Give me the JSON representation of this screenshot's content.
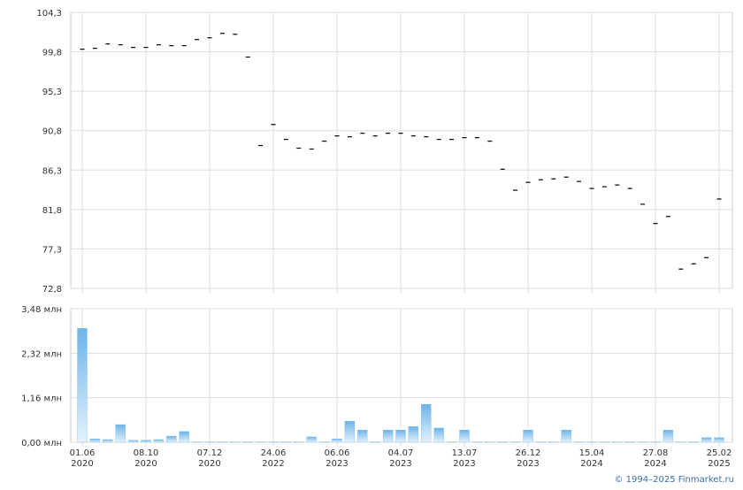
{
  "chart_data": [
    {
      "type": "candle",
      "series": [
        {
          "color": "#000000",
          "values": [
            100.1,
            100.2,
            100.7,
            100.6,
            100.3,
            100.3,
            100.6,
            100.5,
            100.5,
            101.2,
            101.4,
            101.9,
            101.8,
            99.2,
            89.1,
            91.5,
            89.8,
            88.8,
            88.7,
            89.6,
            90.2,
            90.1,
            90.5,
            90.2,
            90.5,
            90.5,
            90.2,
            90.1,
            89.8,
            89.8,
            90.0,
            90.0,
            89.6,
            86.4,
            84.0,
            84.9,
            85.2,
            85.3,
            85.5,
            85.0,
            84.2,
            84.4,
            84.6,
            84.2,
            82.4,
            80.2,
            81.0,
            75.0,
            75.6,
            76.3,
            83.0
          ]
        }
      ],
      "ylim": [
        72.8,
        104.3
      ],
      "yticks": [
        {
          "value": 72.8,
          "label": "72,8"
        },
        {
          "value": 77.3,
          "label": "77,3"
        },
        {
          "value": 81.8,
          "label": "81,8"
        },
        {
          "value": 86.3,
          "label": "86,3"
        },
        {
          "value": 90.8,
          "label": "90,8"
        },
        {
          "value": 95.3,
          "label": "95,3"
        },
        {
          "value": 99.8,
          "label": "99,8"
        },
        {
          "value": 104.3,
          "label": "104,3"
        }
      ],
      "grid": true
    },
    {
      "type": "bar",
      "color": "#6cb4e8",
      "categories": [
        "01.06 2020",
        null,
        null,
        null,
        null,
        "08.10 2020",
        null,
        null,
        null,
        null,
        "07.12 2020",
        null,
        null,
        null,
        null,
        "24.06 2022",
        null,
        null,
        null,
        null,
        "06.06 2023",
        null,
        null,
        null,
        null,
        "04.07 2023",
        null,
        null,
        null,
        null,
        "13.07 2023",
        null,
        null,
        null,
        null,
        "26.12 2023",
        null,
        null,
        null,
        null,
        "15.04 2024",
        null,
        null,
        null,
        null,
        "27.08 2024",
        null,
        null,
        null,
        null,
        "25.02 2025"
      ],
      "values": [
        2.97,
        0.09,
        0.07,
        0.46,
        0.05,
        0.05,
        0.07,
        0.16,
        0.28,
        0.01,
        0.01,
        0.01,
        0.01,
        0.01,
        0.01,
        0.01,
        0.01,
        0.01,
        0.14,
        0.01,
        0.09,
        0.55,
        0.32,
        0.01,
        0.32,
        0.32,
        0.41,
        0.99,
        0.37,
        0.01,
        0.32,
        0.01,
        0.01,
        0.01,
        0.01,
        0.32,
        0.01,
        0.01,
        0.32,
        0.01,
        0.01,
        0.01,
        0.01,
        0.01,
        0.01,
        0.01,
        0.32,
        0.01,
        0.01,
        0.12,
        0.12
      ],
      "ylim": [
        0,
        3.48
      ],
      "yticks": [
        {
          "value": 0,
          "label": "0,00 млн"
        },
        {
          "value": 1.16,
          "label": "1,16 млн"
        },
        {
          "value": 2.32,
          "label": "2,32 млн"
        },
        {
          "value": 3.48,
          "label": "3,48 млн"
        }
      ],
      "grid": true
    }
  ],
  "footer": "© 1994–2025 Finmarket.ru"
}
